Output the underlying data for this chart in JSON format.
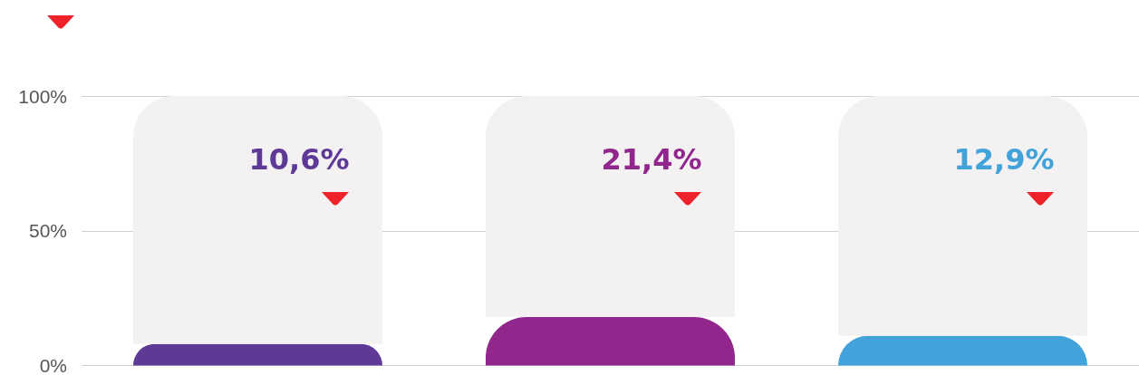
{
  "chart_data": {
    "type": "bar",
    "categories": [
      null,
      null,
      null
    ],
    "stacked": true,
    "series": [
      {
        "colors": [
          "#5e3a96",
          "#91278d",
          "#42a3db"
        ],
        "values": [
          8,
          18,
          11
        ]
      },
      {
        "color": "#f3f1f2",
        "values": [
          92,
          82,
          89
        ]
      }
    ],
    "annotations": [
      "10,6%",
      "21,4%",
      "12,9%"
    ],
    "ylim": [
      0,
      100
    ],
    "yticks": [
      {
        "value": 0,
        "label": "0%"
      },
      {
        "value": 50,
        "label": "50%"
      },
      {
        "value": 100,
        "label": "100%"
      }
    ],
    "grid": "y"
  }
}
